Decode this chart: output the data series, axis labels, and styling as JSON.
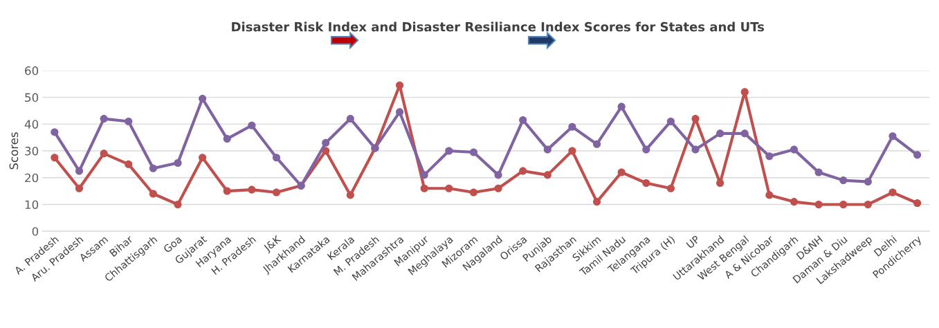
{
  "chart_data": {
    "type": "line",
    "title": "Disaster Risk Index and Disaster Resiliance Index Scores for States and UTs",
    "ylabel": "Scores",
    "categories": [
      "A. Pradesh",
      "Aru. Pradesh",
      "Assam",
      "Bihar",
      "Chhattisgarh",
      "Goa",
      "Gujarat",
      "Haryana",
      "H. Pradesh",
      "J&K",
      "Jharkhand",
      "Karnataka",
      "Kerala",
      "M. Pradesh",
      "Maharashtra",
      "Manipur",
      "Meghalaya",
      "Mizoram",
      "Nagaland",
      "Orissa",
      "Punjab",
      "Rajasthan",
      "Sikkim",
      "Tamil Nadu",
      "Telangana",
      "Tripura (H)",
      "UP",
      "Uttarakhand",
      "West Bengal",
      "A & Nicobar",
      "Chandigarh",
      "D&NH",
      "Daman & Diu",
      "Lakshadweep",
      "Delhi",
      "Pondicherry"
    ],
    "series": [
      {
        "color": "#8064a2",
        "values": [
          37,
          22.5,
          42,
          41,
          23.5,
          25.5,
          49.5,
          34.5,
          39.5,
          27.5,
          17,
          33,
          42,
          31,
          44.5,
          21,
          30,
          29.5,
          21,
          41.5,
          30.5,
          39,
          32.5,
          46.5,
          30.5,
          41,
          30.5,
          36.5,
          36.5,
          28,
          30.5,
          22,
          19,
          18.5,
          35.5,
          28.5
        ]
      },
      {
        "color": "#c0504d",
        "values": [
          27.5,
          16,
          29,
          25,
          14,
          10,
          27.5,
          15,
          15.5,
          14.5,
          17,
          30,
          13.5,
          31,
          54.5,
          16,
          16,
          14.5,
          16,
          22.5,
          21,
          30,
          11,
          22,
          18,
          16,
          42,
          18,
          52,
          13.5,
          11,
          10,
          10,
          10,
          14.5,
          10.5
        ]
      }
    ],
    "ylim": [
      0,
      60
    ],
    "yticks": [
      0,
      10,
      20,
      30,
      40,
      50,
      60
    ],
    "grid": "y",
    "marker": "circle",
    "line_style": "solid"
  }
}
